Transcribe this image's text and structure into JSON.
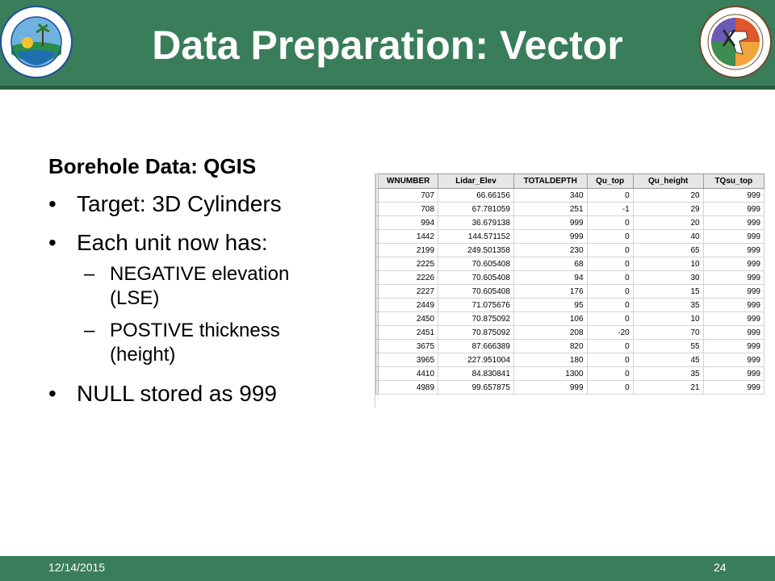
{
  "header": {
    "title": "Data Preparation: Vector",
    "left_logo_text": "Florida Department of Environmental Protection",
    "right_logo_text": "Florida Geological Survey EST. 1907"
  },
  "content": {
    "heading": "Borehole Data: QGIS",
    "bullets": [
      "Target: 3D Cylinders",
      "Each unit now has:",
      "NULL stored as 999"
    ],
    "sub_bullets": [
      "NEGATIVE elevation (LSE)",
      "POSTIVE thickness (height)"
    ],
    "bullet_glyph": "•",
    "dash_glyph": "–"
  },
  "table": {
    "columns": [
      "WNUMBER",
      "Lidar_Elev",
      "TOTALDEPTH",
      "Qu_top",
      "Qu_height",
      "TQsu_top"
    ],
    "rows": [
      [
        "707",
        "66.66156",
        "340",
        "0",
        "20",
        "999"
      ],
      [
        "708",
        "67.781059",
        "251",
        "-1",
        "29",
        "999"
      ],
      [
        "994",
        "36.679138",
        "999",
        "0",
        "20",
        "999"
      ],
      [
        "1442",
        "144.571152",
        "999",
        "0",
        "40",
        "999"
      ],
      [
        "2199",
        "249.501358",
        "230",
        "0",
        "65",
        "999"
      ],
      [
        "2225",
        "70.605408",
        "68",
        "0",
        "10",
        "999"
      ],
      [
        "2226",
        "70.605408",
        "94",
        "0",
        "30",
        "999"
      ],
      [
        "2227",
        "70.605408",
        "176",
        "0",
        "15",
        "999"
      ],
      [
        "2449",
        "71.075676",
        "95",
        "0",
        "35",
        "999"
      ],
      [
        "2450",
        "70.875092",
        "106",
        "0",
        "10",
        "999"
      ],
      [
        "2451",
        "70.875092",
        "208",
        "-20",
        "70",
        "999"
      ],
      [
        "3675",
        "87.666389",
        "820",
        "0",
        "55",
        "999"
      ],
      [
        "3965",
        "227.951004",
        "180",
        "0",
        "45",
        "999"
      ],
      [
        "4410",
        "84.830841",
        "1300",
        "0",
        "35",
        "999"
      ],
      [
        "4989",
        "99.657875",
        "999",
        "0",
        "21",
        "999"
      ]
    ]
  },
  "footer": {
    "date": "12/14/2015",
    "page": "24"
  },
  "colors": {
    "header_green": "#3a7d5a",
    "dark_green": "#2a5e40"
  }
}
